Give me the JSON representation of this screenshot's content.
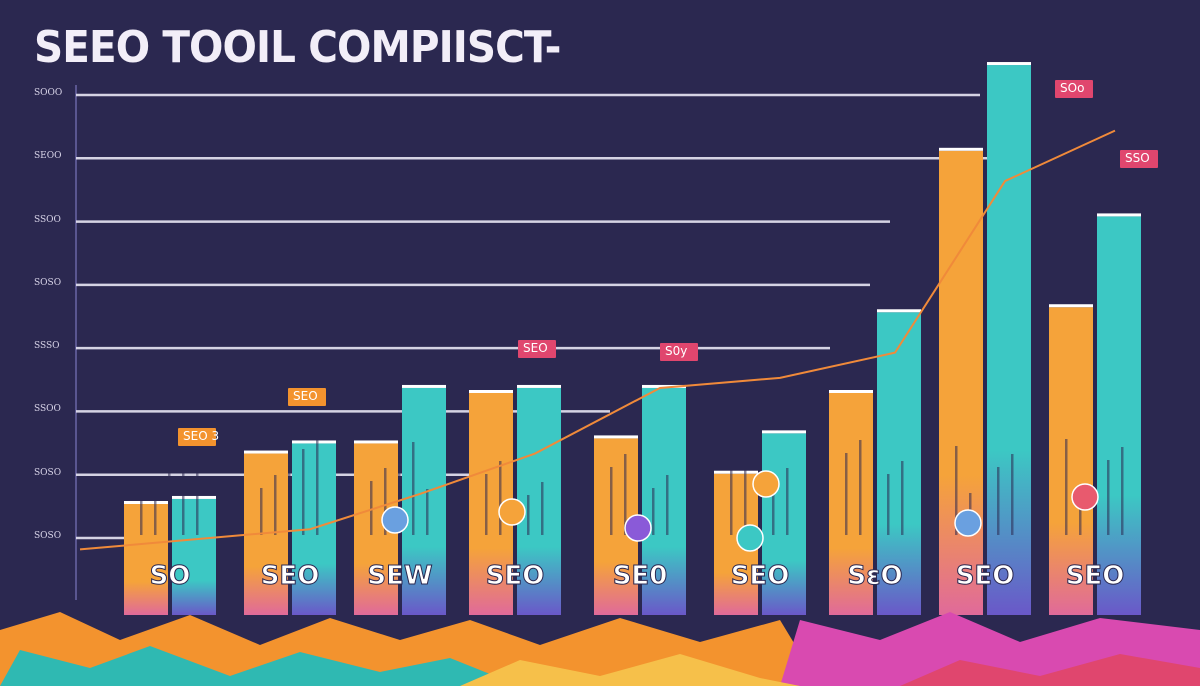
{
  "chart_data": {
    "type": "bar",
    "title": "SEEO TOOIL COMPIISCT-",
    "yticks": [
      "SOOO",
      "SEOO",
      "SSOO",
      "SOSO",
      "SSSO",
      "SSOO",
      "SOSO",
      "SOSO"
    ],
    "categories": [
      "SO",
      "SEO",
      "SEW",
      "SEO",
      "SE0",
      "SEO",
      "SεO",
      "SEO",
      "SEO"
    ],
    "series": [
      {
        "values": [
          2.2,
          3.2,
          3.4,
          4.4,
          3.5,
          2.8,
          4.4,
          9.2,
          6.1
        ]
      },
      {
        "values": [
          2.3,
          3.4,
          4.5,
          4.5,
          4.5,
          3.6,
          6.0,
          10.9,
          7.9
        ]
      }
    ],
    "trend_line": [
      1.3,
      1.7,
      2.4,
      3.2,
      4.5,
      4.7,
      5.2,
      8.6,
      9.6
    ],
    "callouts": [
      "SEO 3",
      "SEO",
      "SEO",
      "S0y",
      "SOo",
      "SSO"
    ],
    "ylim": [
      0,
      11
    ],
    "colors": {
      "background": "#2b2850",
      "bar_orange": "#f5a33a",
      "bar_teal": "#3cc8c4",
      "trend": "#f08a3a",
      "callout": "#e0466e",
      "ground_orange": "#f3932e",
      "ground_magenta": "#d94ab0",
      "ground_teal": "#2fb9b2"
    }
  }
}
